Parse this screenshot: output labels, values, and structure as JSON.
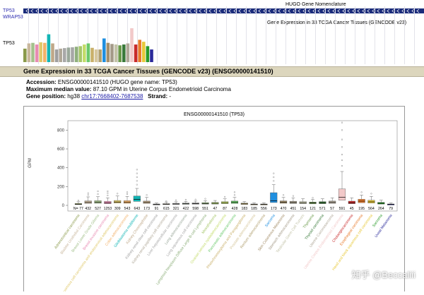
{
  "track": {
    "hugo_label": "TP53",
    "wrap_label": "WRAP53",
    "expr_label": "TP53",
    "hugo_title": "HUGO Gene Nomenclature",
    "expr_title": "Gene Expression in 33 TCGA Cancer Tissues (GENCODE v23)"
  },
  "section": {
    "title": "Gene Expression in 33 TCGA Cancer Tissues (GENCODE v23) (ENSG00000141510)"
  },
  "info": {
    "accession_label": "Accession:",
    "accession_value": " ENSG00000141510 (HUGO gene name: TP53)",
    "max_label": "Maximum median value:",
    "max_value": " 87.10 GPM in Uterine Corpus Endometrioid Carcinoma",
    "pos_label": "Gene position:",
    "pos_prefix": " hg38 ",
    "pos_link": "chr17:7668402-7687538",
    "strand_label": "Strand:",
    "strand_value": " -"
  },
  "watermark": "知乎 @Beccaliii",
  "chart_data": {
    "type": "box",
    "title": "ENSG00000141510 (TP53)",
    "ylabel": "GPM",
    "ylim": [
      0,
      900
    ],
    "yticks": [
      0,
      200,
      400,
      600,
      800
    ],
    "tick_prefix": "N=",
    "categories": [
      {
        "name": "Adrenocortical carcinoma",
        "n": "77",
        "color": "#8a9a4a",
        "q1": 8,
        "median": 13,
        "q3": 20,
        "whisk": 38,
        "outliers": [
          52
        ]
      },
      {
        "name": "Bladder Urothelial Carcinoma",
        "n": "432",
        "color": "#c9b79c",
        "q1": 20,
        "median": 32,
        "q3": 48,
        "whisk": 90,
        "outliers": [
          110,
          130
        ]
      },
      {
        "name": "Breast Lower Grade Glioma",
        "n": "527",
        "color": "#a4c18c",
        "q1": 22,
        "median": 34,
        "q3": 50,
        "whisk": 92,
        "outliers": [
          120,
          150
        ]
      },
      {
        "name": "Breast invasive carcinoma",
        "n": "1253",
        "color": "#e88bb2",
        "q1": 18,
        "median": 28,
        "q3": 42,
        "whisk": 80,
        "outliers": [
          105,
          130,
          150
        ]
      },
      {
        "name": "Cervical squamous cell carcinoma and endocervical adenocarcinoma",
        "n": "309",
        "color": "#e0c96a",
        "q1": 24,
        "median": 36,
        "q3": 52,
        "whisk": 100,
        "outliers": [
          125
        ]
      },
      {
        "name": "Colon adenocarcinoma",
        "n": "543",
        "color": "#f2b26a",
        "q1": 22,
        "median": 34,
        "q3": 50,
        "whisk": 95,
        "outliers": [
          120,
          140
        ]
      },
      {
        "name": "Glioblastoma multiforme",
        "n": "643",
        "color": "#12b5b5",
        "q1": 42,
        "median": 65,
        "q3": 100,
        "whisk": 180,
        "outliers": [
          220,
          260,
          300,
          340,
          380
        ]
      },
      {
        "name": "Kidney Chromophobe",
        "n": "173",
        "color": "#bfa888",
        "q1": 20,
        "median": 32,
        "q3": 46,
        "whisk": 85,
        "outliers": [
          110
        ]
      },
      {
        "name": "Kidney renal clear cell carcinoma",
        "n": "91",
        "color": "#9f9f9f",
        "q1": 6,
        "median": 10,
        "q3": 15,
        "whisk": 25,
        "outliers": []
      },
      {
        "name": "Kidney renal papillary cell carcinoma",
        "n": "615",
        "color": "#b0a898",
        "q1": 8,
        "median": 13,
        "q3": 19,
        "whisk": 32,
        "outliers": [
          45
        ]
      },
      {
        "name": "Liver hepatocellular carcinoma",
        "n": "321",
        "color": "#a8a8a8",
        "q1": 10,
        "median": 15,
        "q3": 22,
        "whisk": 38,
        "outliers": [
          55
        ]
      },
      {
        "name": "Lung adenocarcinoma",
        "n": "422",
        "color": "#9aa89a",
        "q1": 11,
        "median": 17,
        "q3": 25,
        "whisk": 42,
        "outliers": [
          60
        ]
      },
      {
        "name": "Lung squamous cell carcinoma",
        "n": "598",
        "color": "#a7a7a7",
        "q1": 12,
        "median": 18,
        "q3": 27,
        "whisk": 45,
        "outliers": [
          62
        ]
      },
      {
        "name": "Lymphoid Neoplasm Diffuse Large B-cell Lymphoma",
        "n": "551",
        "color": "#8fb07c",
        "q1": 13,
        "median": 20,
        "q3": 30,
        "whisk": 50,
        "outliers": [
          70
        ]
      },
      {
        "name": "Mesothelioma",
        "n": "47",
        "color": "#a7c76a",
        "q1": 14,
        "median": 22,
        "q3": 32,
        "whisk": 52,
        "outliers": []
      },
      {
        "name": "Ovarian serous cystadenocarcinoma",
        "n": "87",
        "color": "#c3dc6a",
        "q1": 18,
        "median": 28,
        "q3": 40,
        "whisk": 70,
        "outliers": [
          90
        ]
      },
      {
        "name": "Pancreatic adenocarcinoma",
        "n": "428",
        "color": "#6ac96a",
        "q1": 20,
        "median": 32,
        "q3": 46,
        "whisk": 85,
        "outliers": [
          110,
          140
        ]
      },
      {
        "name": "Pheochromocytoma and Paraganglioma",
        "n": "183",
        "color": "#c9b06a",
        "q1": 10,
        "median": 16,
        "q3": 24,
        "whisk": 40,
        "outliers": []
      },
      {
        "name": "Prostate adenocarcinoma",
        "n": "185",
        "color": "#d6c79c",
        "q1": 6,
        "median": 10,
        "q3": 15,
        "whisk": 26,
        "outliers": []
      },
      {
        "name": "Rectum adenocarcinoma",
        "n": "556",
        "color": "#b1a070",
        "q1": 6,
        "median": 10,
        "q3": 15,
        "whisk": 26,
        "outliers": []
      },
      {
        "name": "Sarcoma",
        "n": "173",
        "color": "#1f8fe0",
        "q1": 30,
        "median": 50,
        "q3": 135,
        "whisk": 220,
        "outliers": [
          260,
          300,
          340
        ]
      },
      {
        "name": "Skin Cutaneous Melanoma",
        "n": "470",
        "color": "#a58f6a",
        "q1": 22,
        "median": 34,
        "q3": 48,
        "whisk": 85,
        "outliers": [
          110
        ]
      },
      {
        "name": "Stomach adenocarcinoma",
        "n": "451",
        "color": "#a49a88",
        "q1": 20,
        "median": 30,
        "q3": 44,
        "whisk": 80,
        "outliers": [
          100
        ]
      },
      {
        "name": "Testicular Germ Cell Tumors",
        "n": "154",
        "color": "#c3c3a8",
        "q1": 18,
        "median": 28,
        "q3": 40,
        "whisk": 70,
        "outliers": []
      },
      {
        "name": "Thymoma",
        "n": "121",
        "color": "#6a9a4a",
        "q1": 16,
        "median": 25,
        "q3": 36,
        "whisk": 62,
        "outliers": [
          80
        ]
      },
      {
        "name": "Thyroid carcinoma",
        "n": "571",
        "color": "#3a7a3a",
        "q1": 18,
        "median": 28,
        "q3": 40,
        "whisk": 70,
        "outliers": []
      },
      {
        "name": "Uterine Carcinosarcoma",
        "n": "57",
        "color": "#b0a898",
        "q1": 20,
        "median": 32,
        "q3": 46,
        "whisk": 80,
        "outliers": []
      },
      {
        "name": "Uterine Corpus Endometrioid Carcinoma",
        "n": "591",
        "color": "#f2c9c9",
        "q1": 55,
        "median": 87,
        "q3": 175,
        "whisk": 360,
        "outliers": [
          420,
          480,
          540,
          620,
          700,
          800,
          880
        ]
      },
      {
        "name": "Cholangiocarcinoma",
        "n": "45",
        "color": "#c92a2a",
        "q1": 18,
        "median": 28,
        "q3": 45,
        "whisk": 80,
        "outliers": []
      },
      {
        "name": "Esophageal carcinoma",
        "n": "195",
        "color": "#e87a2a",
        "q1": 28,
        "median": 45,
        "q3": 65,
        "whisk": 110,
        "outliers": [
          140
        ]
      },
      {
        "name": "Head and Neck squamous cell carcinoma",
        "n": "564",
        "color": "#e8c93a",
        "q1": 24,
        "median": 38,
        "q3": 55,
        "whisk": 95,
        "outliers": [
          125
        ]
      },
      {
        "name": "Sarcoma",
        "n": "264",
        "color": "#2a9a2a",
        "q1": 14,
        "median": 22,
        "q3": 32,
        "whisk": 55,
        "outliers": []
      },
      {
        "name": "Uveal Melanoma",
        "n": "79",
        "color": "#2a2a9a",
        "q1": 6,
        "median": 10,
        "q3": 15,
        "whisk": 25,
        "outliers": []
      }
    ]
  },
  "mini_bars": {
    "colors": [
      "#8a9a4a",
      "#c9b79c",
      "#a4c18c",
      "#e88bb2",
      "#e0c96a",
      "#f2b26a",
      "#12b5b5",
      "#bfa888",
      "#9f9f9f",
      "#b0a898",
      "#a8a8a8",
      "#9aa89a",
      "#a7a7a7",
      "#8fb07c",
      "#a7c76a",
      "#c3dc6a",
      "#6ac96a",
      "#c9b06a",
      "#d6c79c",
      "#b1a070",
      "#1f8fe0",
      "#a58f6a",
      "#a49a88",
      "#c3c3a8",
      "#6a9a4a",
      "#3a7a3a",
      "#b0a898",
      "#f2c9c9",
      "#c92a2a",
      "#e87a2a",
      "#e8c93a",
      "#2a9a2a",
      "#2a2a9a"
    ],
    "values": [
      13,
      32,
      34,
      28,
      36,
      34,
      65,
      32,
      10,
      13,
      15,
      17,
      18,
      20,
      22,
      28,
      32,
      16,
      10,
      10,
      50,
      34,
      30,
      28,
      25,
      28,
      32,
      87,
      28,
      45,
      38,
      22,
      10
    ]
  }
}
